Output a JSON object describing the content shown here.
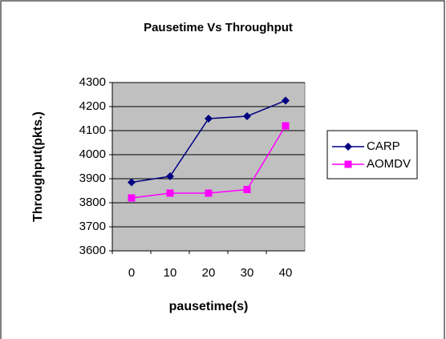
{
  "chart_data": {
    "type": "line",
    "title": "Pausetime Vs Throughput",
    "x_label": "pausetime(s)",
    "y_label": "Throughput(pkts.)",
    "categories": [
      "0",
      "10",
      "20",
      "30",
      "40"
    ],
    "series": [
      {
        "name": "CARP",
        "color": "#000080",
        "marker": "diamond",
        "values": [
          3885,
          3910,
          4150,
          4160,
          4225
        ]
      },
      {
        "name": "AOMDV",
        "color": "#ff00ff",
        "marker": "square",
        "values": [
          3820,
          3840,
          3840,
          3855,
          4120
        ]
      }
    ],
    "ylim": [
      3600,
      4300
    ],
    "yticks": [
      3600,
      3700,
      3800,
      3900,
      4000,
      4100,
      4200,
      4300
    ],
    "grid": true,
    "legend": "right"
  }
}
